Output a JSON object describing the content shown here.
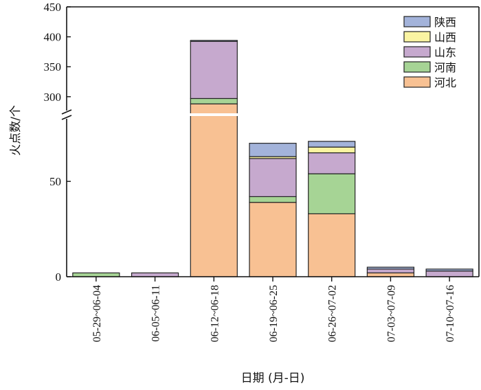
{
  "chart_data": {
    "type": "bar",
    "stacked": true,
    "broken_axis": true,
    "xlabel": "日期 (月-日)",
    "ylabel": "火点数/个",
    "categories": [
      "05-29~06-04",
      "06-05~06-11",
      "06-12~06-18",
      "06-19~06-25",
      "06-26~07-02",
      "07-03~07-09",
      "07-10~07-16"
    ],
    "y_ticks_lower": [
      0,
      50
    ],
    "y_ticks_upper": [
      300,
      350,
      400,
      450
    ],
    "ylim_lower": [
      0,
      85
    ],
    "ylim_upper": [
      270,
      450
    ],
    "series": [
      {
        "name": "河北",
        "color": "#F8C193",
        "values": [
          0,
          0,
          288,
          39,
          33,
          2,
          0
        ]
      },
      {
        "name": "河南",
        "color": "#A6D495",
        "values": [
          2,
          0,
          9,
          3,
          21,
          0,
          0
        ]
      },
      {
        "name": "山东",
        "color": "#C6A9CE",
        "values": [
          0,
          2,
          96,
          20,
          11,
          2,
          3
        ]
      },
      {
        "name": "山西",
        "color": "#FAF4A2",
        "values": [
          0,
          0,
          0,
          1,
          3,
          0,
          0
        ]
      },
      {
        "name": "陕西",
        "color": "#A3B3DA",
        "values": [
          0,
          0,
          1,
          7,
          3,
          1,
          1
        ]
      }
    ],
    "legend_order": [
      "陕西",
      "山西",
      "山东",
      "河南",
      "河北"
    ],
    "legend_position": "top-right",
    "grid": false
  }
}
